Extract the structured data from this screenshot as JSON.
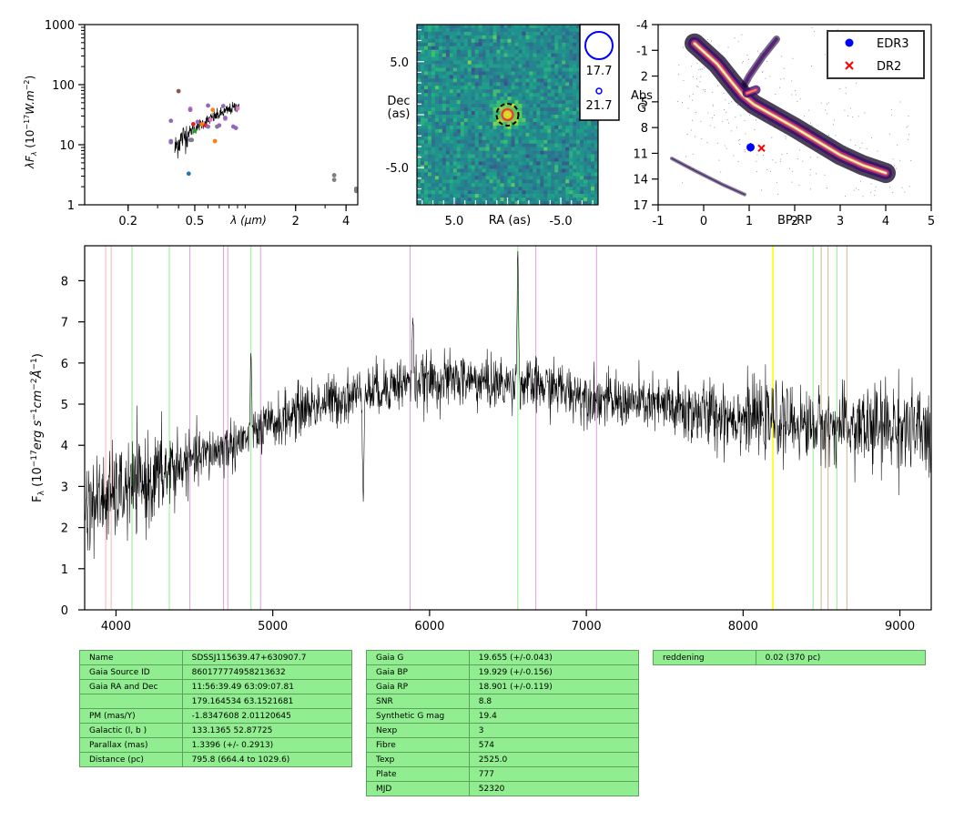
{
  "colors": {
    "accent_edr3": "#0000ff",
    "accent_dr2": "#ff0000",
    "table_bg": "#90ee90"
  },
  "chart_data": [
    {
      "type": "scatter",
      "panel": "sed",
      "ylabel_left": "λF",
      "ylabel_right": " (10",
      "ylabel_exp": "−17",
      "ylabel_unit": "W.m",
      "ylabel_exp2": "−2",
      "xlabel": "λ (μm)",
      "x_scale": "log",
      "y_scale": "log",
      "xlim": [
        0.11,
        4.7
      ],
      "ylim": [
        1,
        1000
      ],
      "xticks": [
        {
          "v": 0.2,
          "t": "0.2"
        },
        {
          "v": 0.5,
          "t": "0.5"
        },
        {
          "v": 2,
          "t": "2"
        },
        {
          "v": 4,
          "t": "4"
        }
      ],
      "yticks": [
        {
          "v": 1,
          "t": "1"
        },
        {
          "v": 10,
          "t": "10"
        },
        {
          "v": 100,
          "t": "100"
        },
        {
          "v": 1000,
          "t": "1000"
        }
      ],
      "points": [
        {
          "x": 0.36,
          "y": 25,
          "c": "#9467bd"
        },
        {
          "x": 0.36,
          "y": 11.5,
          "c": "#9467bd"
        },
        {
          "x": 0.36,
          "y": 11,
          "c": "#9467bd"
        },
        {
          "x": 0.4,
          "y": 78,
          "c": "#8c564b"
        },
        {
          "x": 0.46,
          "y": 3.3,
          "c": "#1f77b4"
        },
        {
          "x": 0.47,
          "y": 40,
          "c": "#e377c2"
        },
        {
          "x": 0.47,
          "y": 38,
          "c": "#9467bd"
        },
        {
          "x": 0.47,
          "y": 12,
          "c": "#9467bd"
        },
        {
          "x": 0.48,
          "y": 12,
          "c": "#7f7f7f"
        },
        {
          "x": 0.49,
          "y": 22,
          "c": "#d62728"
        },
        {
          "x": 0.5,
          "y": 17,
          "c": "#2ca02c"
        },
        {
          "x": 0.52,
          "y": 24,
          "c": "#9467bd"
        },
        {
          "x": 0.55,
          "y": 22,
          "c": "#ff7f0e"
        },
        {
          "x": 0.58,
          "y": 21,
          "c": "#d62728"
        },
        {
          "x": 0.6,
          "y": 45,
          "c": "#9467bd"
        },
        {
          "x": 0.6,
          "y": 20,
          "c": "#9467bd"
        },
        {
          "x": 0.62,
          "y": 26,
          "c": "#e377c2"
        },
        {
          "x": 0.64,
          "y": 38,
          "c": "#ff7f0e"
        },
        {
          "x": 0.66,
          "y": 11.5,
          "c": "#ff7f0e"
        },
        {
          "x": 0.68,
          "y": 20,
          "c": "#7f7f7f"
        },
        {
          "x": 0.7,
          "y": 21,
          "c": "#9467bd"
        },
        {
          "x": 0.74,
          "y": 44,
          "c": "#9467bd"
        },
        {
          "x": 0.76,
          "y": 27,
          "c": "#e377c2"
        },
        {
          "x": 0.76,
          "y": 28,
          "c": "#9467bd"
        },
        {
          "x": 0.85,
          "y": 20,
          "c": "#9467bd"
        },
        {
          "x": 0.88,
          "y": 19,
          "c": "#9467bd"
        },
        {
          "x": 0.9,
          "y": 40,
          "c": "#e377c2"
        },
        {
          "x": 3.4,
          "y": 3.1,
          "c": "#7f7f7f"
        },
        {
          "x": 3.4,
          "y": 2.6,
          "c": "#7f7f7f"
        },
        {
          "x": 4.6,
          "y": 1.85,
          "c": "#7f7f7f"
        },
        {
          "x": 4.6,
          "y": 1.75,
          "c": "#7f7f7f"
        },
        {
          "x": 4.6,
          "y": 1.7,
          "c": "#7f7f7f"
        }
      ],
      "spectrum_line": {
        "x_start": 0.38,
        "x_end": 0.92,
        "y_start": 8,
        "y_end": 45
      }
    },
    {
      "type": "heatmap",
      "panel": "image",
      "xlabel": "RA (as)",
      "ylabel": "Dec\n(as)",
      "xlim": [
        8.5,
        -8.5
      ],
      "ylim": [
        -8.5,
        8.5
      ],
      "xticks": [
        {
          "v": 5,
          "t": "5.0"
        },
        {
          "v": -5,
          "t": "-5.0"
        }
      ],
      "yticks": [
        {
          "v": 5,
          "t": "5.0"
        },
        {
          "v": -5,
          "t": "-5.0"
        }
      ],
      "source": {
        "x": 0.0,
        "y": 0.0
      },
      "legend": [
        {
          "label": "17.7"
        },
        {
          "label": "21.7"
        }
      ]
    },
    {
      "type": "scatter",
      "panel": "hr",
      "xlabel": "BP-RP",
      "ylabel": "Abs\nG",
      "xlim": [
        -1,
        5
      ],
      "ylim": [
        17,
        -4
      ],
      "xticks": [
        {
          "v": -1,
          "t": "-1"
        },
        {
          "v": 0,
          "t": "0"
        },
        {
          "v": 1,
          "t": "1"
        },
        {
          "v": 2,
          "t": "2"
        },
        {
          "v": 3,
          "t": "3"
        },
        {
          "v": 4,
          "t": "4"
        },
        {
          "v": 5,
          "t": "5"
        }
      ],
      "yticks": [
        {
          "v": -4,
          "t": "-4"
        },
        {
          "v": -1,
          "t": "-1"
        },
        {
          "v": 2,
          "t": "2"
        },
        {
          "v": 5,
          "t": "5"
        },
        {
          "v": 8,
          "t": "8"
        },
        {
          "v": 11,
          "t": "11"
        },
        {
          "v": 14,
          "t": "14"
        },
        {
          "v": 17,
          "t": "17"
        }
      ],
      "series": [
        {
          "name": "EDR3",
          "x": 1.03,
          "y": 10.3,
          "color": "#0000ff",
          "marker": "circle"
        },
        {
          "name": "DR2",
          "x": 1.27,
          "y": 10.4,
          "color": "#ff0000",
          "marker": "x"
        }
      ],
      "legend_placement": "top-right"
    },
    {
      "type": "line",
      "panel": "spectrum",
      "ylabel_main": "F",
      "ylabel_sub": "λ",
      "ylabel_pre": " (10",
      "ylabel_exp": "−17",
      "ylabel_unit1": "erg s",
      "ylabel_exp2": "−1",
      "ylabel_unit2": "cm",
      "ylabel_exp3": "−2",
      "ylabel_unit3": "Å",
      "ylabel_exp4": "−1",
      "ylabel_close": ")",
      "xlim": [
        3800,
        9200
      ],
      "ylim": [
        0,
        8.85
      ],
      "xticks": [
        {
          "v": 4000,
          "t": "4000"
        },
        {
          "v": 5000,
          "t": "5000"
        },
        {
          "v": 6000,
          "t": "6000"
        },
        {
          "v": 7000,
          "t": "7000"
        },
        {
          "v": 8000,
          "t": "8000"
        },
        {
          "v": 9000,
          "t": "9000"
        }
      ],
      "yticks": [
        {
          "v": 0,
          "t": "0"
        },
        {
          "v": 1,
          "t": "1"
        },
        {
          "v": 2,
          "t": "2"
        },
        {
          "v": 3,
          "t": "3"
        },
        {
          "v": 4,
          "t": "4"
        },
        {
          "v": 5,
          "t": "5"
        },
        {
          "v": 6,
          "t": "6"
        },
        {
          "v": 7,
          "t": "7"
        },
        {
          "v": 8,
          "t": "8"
        }
      ],
      "continuum": [
        [
          3800,
          2.5
        ],
        [
          4000,
          2.8
        ],
        [
          4200,
          3.1
        ],
        [
          4400,
          3.5
        ],
        [
          4600,
          3.8
        ],
        [
          4800,
          4.1
        ],
        [
          5000,
          4.5
        ],
        [
          5200,
          4.9
        ],
        [
          5400,
          5.1
        ],
        [
          5600,
          5.3
        ],
        [
          5800,
          5.5
        ],
        [
          6000,
          5.55
        ],
        [
          6200,
          5.6
        ],
        [
          6400,
          5.5
        ],
        [
          6600,
          5.45
        ],
        [
          6800,
          5.4
        ],
        [
          7000,
          5.2
        ],
        [
          7200,
          5.05
        ],
        [
          7400,
          5.0
        ],
        [
          7600,
          4.85
        ],
        [
          7800,
          4.75
        ],
        [
          8000,
          4.7
        ],
        [
          8200,
          4.6
        ],
        [
          8400,
          4.5
        ],
        [
          8600,
          4.45
        ],
        [
          8800,
          4.4
        ],
        [
          9000,
          4.45
        ],
        [
          9200,
          4.2
        ]
      ],
      "features": [
        {
          "x": 4861,
          "y": 6.2
        },
        {
          "x": 5577,
          "y": 2.8
        },
        {
          "x": 5893,
          "y": 7.1
        },
        {
          "x": 6563,
          "y": 8.85
        }
      ],
      "lines": [
        {
          "x": 3934,
          "c": "#ffb0b0"
        },
        {
          "x": 3969,
          "c": "#ffb0b0"
        },
        {
          "x": 4102,
          "c": "#90ee90"
        },
        {
          "x": 4340,
          "c": "#90ee90"
        },
        {
          "x": 4471,
          "c": "#dda0dd"
        },
        {
          "x": 4686,
          "c": "#dda0dd"
        },
        {
          "x": 4713,
          "c": "#dda0dd"
        },
        {
          "x": 4861,
          "c": "#90ee90"
        },
        {
          "x": 4922,
          "c": "#dda0dd"
        },
        {
          "x": 5876,
          "c": "#dda0dd"
        },
        {
          "x": 6563,
          "c": "#90ee90"
        },
        {
          "x": 6678,
          "c": "#dda0dd"
        },
        {
          "x": 7065,
          "c": "#dda0dd"
        },
        {
          "x": 8190,
          "c": "#ffff00"
        },
        {
          "x": 8446,
          "c": "#90ee90"
        },
        {
          "x": 8498,
          "c": "#d2b48c"
        },
        {
          "x": 8542,
          "c": "#d2b48c"
        },
        {
          "x": 8598,
          "c": "#90ee90"
        },
        {
          "x": 8662,
          "c": "#d2b48c"
        }
      ]
    }
  ],
  "tables": {
    "t1": [
      [
        "Name",
        "SDSSJ115639.47+630907.7"
      ],
      [
        "Gaia Source ID",
        "860177774958213632"
      ],
      [
        "Gaia RA and Dec",
        "11:56:39.49     63:09:07.81"
      ],
      [
        "",
        "179.164534     63.1521681"
      ],
      [
        "PM (mas/Y)",
        "-1.8347608     2.01120645"
      ],
      [
        "Galactic (l, b )",
        "133.1365     52.87725"
      ],
      [
        "Parallax (mas)",
        "1.3396 (+/- 0.2913)"
      ],
      [
        "Distance (pc)",
        "795.8 (664.4 to 1029.6)"
      ]
    ],
    "t2": [
      [
        "Gaia G",
        "19.655 (+/-0.043)"
      ],
      [
        "Gaia BP",
        "19.929 (+/-0.156)"
      ],
      [
        "Gaia RP",
        "18.901 (+/-0.119)"
      ],
      [
        "SNR",
        "8.8"
      ],
      [
        "Synthetic G mag",
        "19.4"
      ],
      [
        "Nexp",
        "3"
      ],
      [
        "Fibre",
        "574"
      ],
      [
        "Texp",
        "2525.0"
      ],
      [
        "Plate",
        "777"
      ],
      [
        "MJD",
        "52320"
      ]
    ],
    "t3": [
      [
        "reddening",
        "0.02 (370 pc)"
      ]
    ]
  }
}
